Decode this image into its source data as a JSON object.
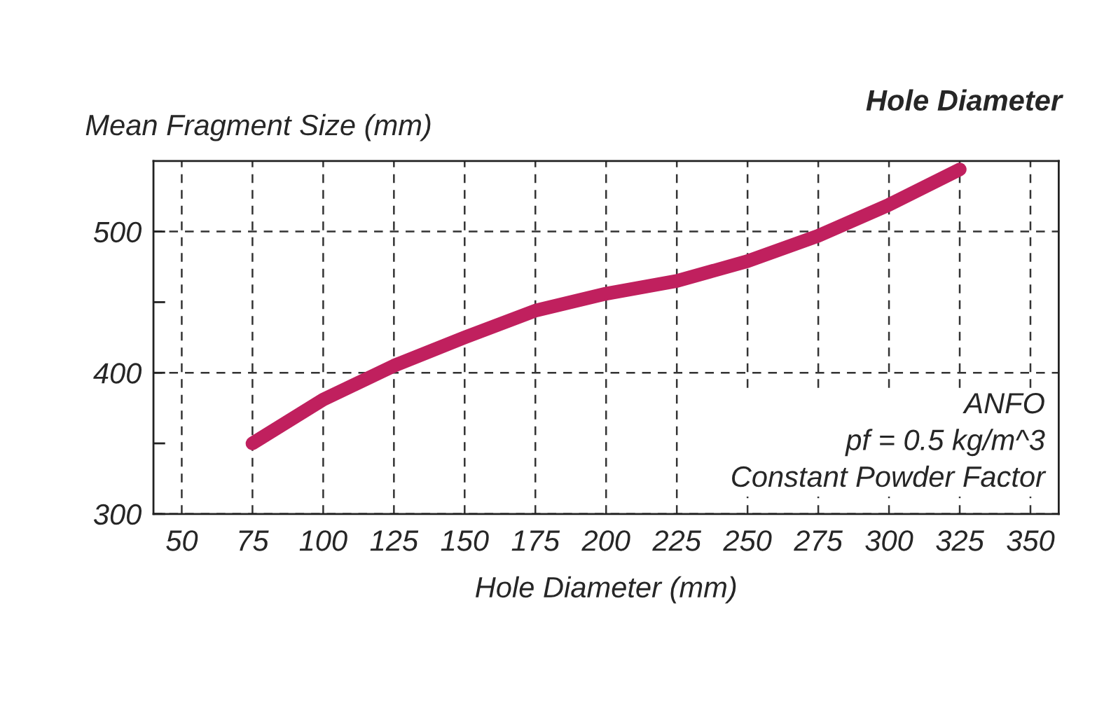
{
  "chart_data": {
    "type": "line",
    "title": "Hole Diameter",
    "xlabel": "Hole Diameter (mm)",
    "ylabel": "Mean Fragment Size (mm)",
    "x": [
      75,
      100,
      125,
      150,
      175,
      200,
      225,
      250,
      275,
      300,
      325
    ],
    "series": [
      {
        "color": "#c0205e",
        "values": [
          350,
          381,
          405,
          425,
          444,
          456,
          465,
          479,
          497,
          519,
          544
        ]
      }
    ],
    "xlim": [
      40,
      360
    ],
    "xticks": [
      50,
      75,
      100,
      125,
      150,
      175,
      200,
      225,
      250,
      275,
      300,
      325,
      350
    ],
    "ylim": [
      300,
      550
    ],
    "yticks": [
      300,
      {
        "value": 350,
        "label": null
      },
      400,
      {
        "value": 450,
        "label": null
      },
      500
    ],
    "grid": true,
    "line_style": "solid",
    "marker": "none",
    "annotations": [
      "ANFO",
      "pf = 0.5 kg/m^3",
      "Constant Powder Factor"
    ]
  }
}
